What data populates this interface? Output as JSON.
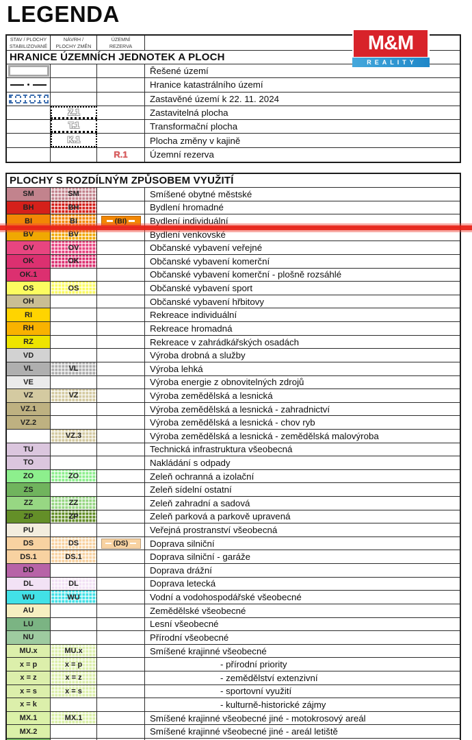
{
  "page": {
    "title": "LEGENDA"
  },
  "logo": {
    "line1": "M&M",
    "line2": "REALITY",
    "red": "#D8232A",
    "blue": "#2E9BD6"
  },
  "annotation": {
    "color": "#E92318"
  },
  "header": {
    "col1_line1": "STAV / PLOCHY",
    "col1_line2": "STABILIZOVANÉ",
    "col2_line1": "NÁVRH /",
    "col2_line2": "PLOCHY ZMĚN",
    "col3_line1": "ÚZEMNÍ",
    "col3_line2": "REZERVA"
  },
  "hranice": {
    "title": "HRANICE ÚZEMNÍCH JEDNOTEK A PLOCH",
    "rows": [
      {
        "type": "outline",
        "label": "Řešené území"
      },
      {
        "type": "dashdot",
        "label": "Hranice katastrálního území"
      },
      {
        "type": "zastavene",
        "label": "Zastavěné území k 22. 11. 2024"
      },
      {
        "type": "zbox",
        "pos": "first",
        "code": "Z.1",
        "label": "Zastavitelná plocha"
      },
      {
        "type": "zbox",
        "pos": "mid",
        "code": "T.1",
        "label": "Transformační plocha"
      },
      {
        "type": "zbox",
        "pos": "last",
        "code": "K.1",
        "label": "Plocha změny v kajině"
      },
      {
        "type": "rezerva",
        "code": "R.1",
        "label": "Územní rezerva"
      }
    ]
  },
  "plochy": {
    "title": "PLOCHY S ROZDÍLNÝM ZPŮSOBEM VYUŽITÍ",
    "partial_row_color": "#70B45D",
    "rows": [
      {
        "stab": "SM",
        "navrh": "SM",
        "rez": null,
        "label": "Smíšené obytné městské",
        "color": "#C2838D",
        "indent": false
      },
      {
        "stab": "BH",
        "navrh": "BH",
        "rez": null,
        "label": "Bydlení hromadné",
        "color": "#D5201A",
        "indent": false
      },
      {
        "stab": "BI",
        "navrh": "BI",
        "rez": "(BI)",
        "label": "Bydlení individuální",
        "color": "#F28705",
        "indent": false
      },
      {
        "stab": "BV",
        "navrh": "BV",
        "rez": null,
        "label": "Bydlení venkovské",
        "color": "#F0A802",
        "indent": false
      },
      {
        "stab": "OV",
        "navrh": "OV",
        "rez": null,
        "label": "Občanské vybavení veřejné",
        "color": "#E84580",
        "indent": false
      },
      {
        "stab": "OK",
        "navrh": "OK",
        "rez": null,
        "label": "Občanské vybavení komerční",
        "color": "#DC3070",
        "indent": false
      },
      {
        "stab": "OK.1",
        "navrh": null,
        "rez": null,
        "label": "Občanské vybavení komerční - plošně rozsáhlé",
        "color": "#DC3070",
        "indent": false
      },
      {
        "stab": "OS",
        "navrh": "OS",
        "rez": null,
        "label": "Občanské vybavení sport",
        "color": "#FCFC60",
        "indent": false
      },
      {
        "stab": "OH",
        "navrh": null,
        "rez": null,
        "label": "Občanské vybavení hřbitovy",
        "color": "#C9BE94",
        "indent": false
      },
      {
        "stab": "RI",
        "navrh": null,
        "rez": null,
        "label": "Rekreace individuální",
        "color": "#FFD400",
        "indent": false
      },
      {
        "stab": "RH",
        "navrh": null,
        "rez": null,
        "label": "Rekreace hromadná",
        "color": "#F9B200",
        "indent": false
      },
      {
        "stab": "RZ",
        "navrh": null,
        "rez": null,
        "label": "Rekreace v zahrádkářských osadách",
        "color": "#EEE400",
        "indent": false
      },
      {
        "stab": "VD",
        "navrh": null,
        "rez": null,
        "label": "Výroba drobná a služby",
        "color": "#D2D2D2",
        "indent": false
      },
      {
        "stab": "VL",
        "navrh": "VL",
        "rez": null,
        "label": "Výroba lehká",
        "color": "#AFAFAF",
        "indent": false
      },
      {
        "stab": "VE",
        "navrh": null,
        "rez": null,
        "label": "Výroba energie z obnovitelných zdrojů",
        "color": "#EBEBEB",
        "indent": false
      },
      {
        "stab": "VZ",
        "navrh": "VZ",
        "rez": null,
        "label": "Výroba zemědělská a lesnická",
        "color": "#D4CAA1",
        "indent": false
      },
      {
        "stab": "VZ.1",
        "navrh": null,
        "rez": null,
        "label": "Výroba zemědělská a lesnická - zahradnictví",
        "color": "#BEB181",
        "indent": false
      },
      {
        "stab": "VZ.2",
        "navrh": null,
        "rez": null,
        "label": "Výroba zemědělská a lesnická - chov ryb",
        "color": "#BEB181",
        "indent": false
      },
      {
        "stab": null,
        "navrh": "VZ.3",
        "rez": null,
        "label": "Výroba zemědělská a lesnická - zemědělská malovýroba",
        "color": "#D4CAA1",
        "indent": false
      },
      {
        "stab": "TU",
        "navrh": null,
        "rez": null,
        "label": "Technická infrastruktura všeobecná",
        "color": "#DBC6DE",
        "indent": false
      },
      {
        "stab": "TO",
        "navrh": null,
        "rez": null,
        "label": "Nakládání s odpady",
        "color": "#DBC6DE",
        "indent": false
      },
      {
        "stab": "ZO",
        "navrh": "ZO",
        "rez": null,
        "label": "Zeleň ochranná a izolační",
        "color": "#8DEF8D",
        "indent": false
      },
      {
        "stab": "ZS",
        "navrh": null,
        "rez": null,
        "label": "Zeleň sídelní ostatní",
        "color": "#70B45D",
        "indent": false
      },
      {
        "stab": "ZZ",
        "navrh": "ZZ",
        "rez": null,
        "label": "Zeleň zahradní a sadová",
        "color": "#97D783",
        "indent": false
      },
      {
        "stab": "ZP",
        "navrh": "ZP",
        "rez": null,
        "label": "Zeleň parková a parkově upravená",
        "color": "#648F28",
        "indent": false
      },
      {
        "stab": "PU",
        "navrh": null,
        "rez": null,
        "label": "Veřejná prostranství všeobecná",
        "color": "#F3EDDE",
        "indent": false
      },
      {
        "stab": "DS",
        "navrh": "DS",
        "rez": "(DS)",
        "label": "Doprava silniční",
        "color": "#F8D2A1",
        "indent": false
      },
      {
        "stab": "DS.1",
        "navrh": "DS.1",
        "rez": null,
        "label": "Doprava silniční - garáže",
        "color": "#F8D2A1",
        "indent": false
      },
      {
        "stab": "DD",
        "navrh": null,
        "rez": null,
        "label": "Doprava drážní",
        "color": "#B763A7",
        "indent": false
      },
      {
        "stab": "DL",
        "navrh": "DL",
        "rez": null,
        "label": "Doprava letecká",
        "color": "#F2E2F5",
        "indent": false
      },
      {
        "stab": "WU",
        "navrh": "WU",
        "rez": null,
        "label": "Vodní a vodohospodářské všeobecné",
        "color": "#42E1E7",
        "indent": false
      },
      {
        "stab": "AU",
        "navrh": null,
        "rez": null,
        "label": "Zemědělské všeobecné",
        "color": "#F6EFC1",
        "indent": false
      },
      {
        "stab": "LU",
        "navrh": null,
        "rez": null,
        "label": "Lesní všeobecné",
        "color": "#7BB483",
        "indent": false
      },
      {
        "stab": "NU",
        "navrh": null,
        "rez": null,
        "label": "Přírodní všeobecné",
        "color": "#9ECBA0",
        "indent": false
      },
      {
        "stab": "MU.x",
        "navrh": "MU.x",
        "rez": null,
        "label": "Smíšené krajinné všeobecné",
        "color": "#DCEFAB",
        "indent": false
      },
      {
        "stab": "x = p",
        "navrh": "x = p",
        "rez": null,
        "label": "- přírodní priority",
        "color": "#DCEFAB",
        "indent": true
      },
      {
        "stab": "x = z",
        "navrh": "x = z",
        "rez": null,
        "label": "- zemědělství extenzivní",
        "color": "#DCEFAB",
        "indent": true
      },
      {
        "stab": "x = s",
        "navrh": "x = s",
        "rez": null,
        "label": "- sportovní využití",
        "color": "#DCEFAB",
        "indent": true
      },
      {
        "stab": "x = k",
        "navrh": null,
        "rez": null,
        "label": "- kulturně-historické zájmy",
        "color": "#DCEFAB",
        "indent": true
      },
      {
        "stab": "MX.1",
        "navrh": "MX.1",
        "rez": null,
        "label": "Smíšené krajinné všeobecné jiné - motokrosový areál",
        "color": "#DBF1A8",
        "indent": false
      },
      {
        "stab": "MX.2",
        "navrh": null,
        "rez": null,
        "label": "Smíšené krajinné všeobecné jiné - areál letiště",
        "color": "#DBF1A8",
        "indent": false
      }
    ]
  }
}
